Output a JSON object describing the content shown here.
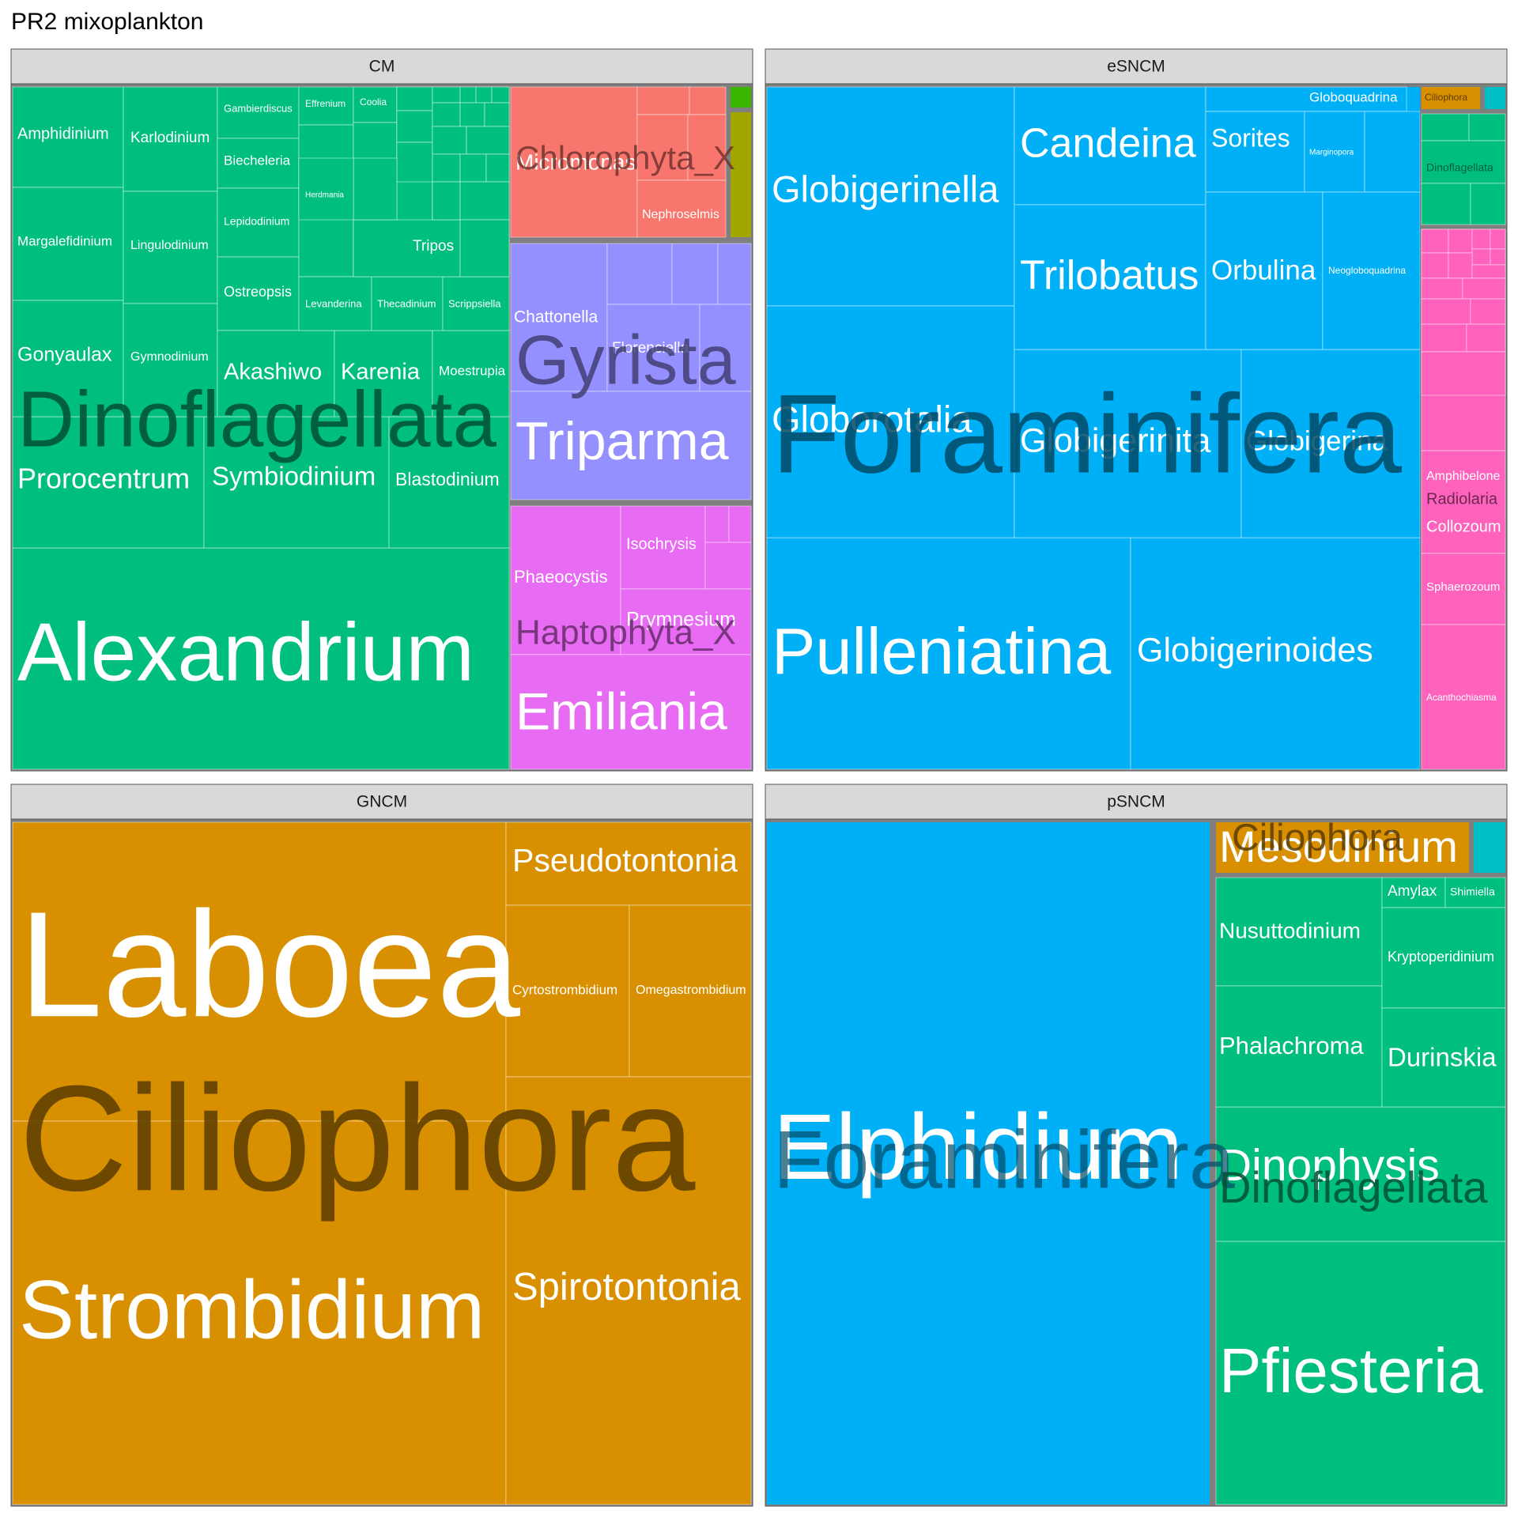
{
  "title": "PR2 mixoplankton",
  "colors": {
    "dinoflagellata": "#00BF7D",
    "chlorophyta": "#F8766D",
    "gyrista": "#9590FF",
    "haptophyta": "#E76BF3",
    "foraminifera": "#00B0F6",
    "radiolaria": "#FF62BC",
    "ciliophora": "#D89000",
    "cyan": "#00BFC4",
    "green_small": "#39B600",
    "olive_small": "#A3A500",
    "panel_bg": "#7F7F7F",
    "strip_bg": "#D9D9D9"
  },
  "chart_data": {
    "type": "treemap",
    "facets": [
      {
        "name": "CM",
        "groups": [
          {
            "name": "Dinoflagellata",
            "color": "dinoflagellata",
            "label_color": "#004F33",
            "genera": [
              "Alexandrium",
              "Prorocentrum",
              "Symbiodinium",
              "Blastodinium",
              "Gonyaulax",
              "Gymnodinium",
              "Akashiwo",
              "Karenia",
              "Moestrupia",
              "Margalefidinium",
              "Lingulodinium",
              "Amphidinium",
              "Karlodinium",
              "Gambierdiscus",
              "Biecheleria",
              "Lepidodinium",
              "Ostreopsis",
              "Effrenium",
              "Coolia",
              "Herdmania",
              "Tripos",
              "Levanderina",
              "Thecadinium",
              "Scrippsiella"
            ]
          },
          {
            "name": "Chlorophyta_X",
            "color": "chlorophyta",
            "label_color": "#6B2F2B",
            "genera": [
              "Micromonas",
              "Nephroselmis"
            ]
          },
          {
            "name": "Gyrista",
            "color": "gyrista",
            "label_color": "#3E3B6B",
            "genera": [
              "Triparma",
              "Chattonella",
              "Florenciella"
            ]
          },
          {
            "name": "Haptophyta_X",
            "color": "haptophyta",
            "label_color": "#5E2A63",
            "genera": [
              "Emiliania",
              "Phaeocystis",
              "Prymnesium",
              "Isochrysis"
            ]
          }
        ]
      },
      {
        "name": "eSNCM",
        "groups": [
          {
            "name": "Foraminifera",
            "color": "foraminifera",
            "label_color": "#004A66",
            "genera": [
              "Pulleniatina",
              "Globigerinoides",
              "Globorotalia",
              "Globigerinita",
              "Globigerina",
              "Globigerinella",
              "Candeina",
              "Trilobatus",
              "Sorites",
              "Orbulina",
              "Neogloboquadrina",
              "Globoquadrina",
              "Marginopora"
            ]
          },
          {
            "name": "Radiolaria",
            "color": "radiolaria",
            "label_color": "#6B2950",
            "genera": [
              "Acanthochiasma",
              "Sphaerozoum",
              "Collozoum",
              "Amphibelone"
            ]
          },
          {
            "name": "Dinoflagellata",
            "color": "dinoflagellata",
            "label_color": "#004F33",
            "genera": []
          },
          {
            "name": "Ciliophora",
            "color": "ciliophora",
            "label_color": "#5A3C00",
            "genera": []
          }
        ]
      },
      {
        "name": "GNCM",
        "groups": [
          {
            "name": "Ciliophora",
            "color": "ciliophora",
            "label_color": "#5A3C00",
            "genera": [
              "Laboea",
              "Strombidium",
              "Pseudotontonia",
              "Spirotontonia",
              "Cyrtostrombidium",
              "Omegastrombidium"
            ]
          }
        ]
      },
      {
        "name": "pSNCM",
        "groups": [
          {
            "name": "Foraminifera",
            "color": "foraminifera",
            "label_color": "#004A66",
            "genera": [
              "Elphidium"
            ]
          },
          {
            "name": "Dinoflagellata",
            "color": "dinoflagellata",
            "label_color": "#004F33",
            "genera": [
              "Pfiesteria",
              "Dinophysis",
              "Nusuttodinium",
              "Phalachroma",
              "Durinskia",
              "Kryptoperidinium",
              "Amylax",
              "Shimiella"
            ]
          },
          {
            "name": "Ciliophora",
            "color": "ciliophora",
            "label_color": "#5A3C00",
            "genera": [
              "Mesodinium"
            ]
          }
        ]
      }
    ]
  }
}
